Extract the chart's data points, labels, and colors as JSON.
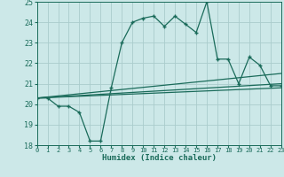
{
  "xlabel": "Humidex (Indice chaleur)",
  "background_color": "#cce8e8",
  "grid_color": "#aacccc",
  "line_color": "#1a6b5a",
  "xlim": [
    0,
    23
  ],
  "ylim": [
    18,
    25
  ],
  "yticks": [
    18,
    19,
    20,
    21,
    22,
    23,
    24,
    25
  ],
  "xticks": [
    0,
    1,
    2,
    3,
    4,
    5,
    6,
    7,
    8,
    9,
    10,
    11,
    12,
    13,
    14,
    15,
    16,
    17,
    18,
    19,
    20,
    21,
    22,
    23
  ],
  "line1_x": [
    0,
    1,
    2,
    3,
    4,
    5,
    6,
    7,
    8,
    9,
    10,
    11,
    12,
    13,
    14,
    15,
    16,
    17,
    18,
    19,
    20,
    21,
    22,
    23
  ],
  "line1_y": [
    20.3,
    20.3,
    19.9,
    19.9,
    19.6,
    18.2,
    18.2,
    20.8,
    23.0,
    24.0,
    24.2,
    24.3,
    23.8,
    24.3,
    23.9,
    23.5,
    25.0,
    22.2,
    22.2,
    21.0,
    22.3,
    21.9,
    20.9,
    20.9
  ],
  "line2_x": [
    0,
    23
  ],
  "line2_y": [
    20.3,
    21.5
  ],
  "line3_x": [
    0,
    23
  ],
  "line3_y": [
    20.3,
    21.0
  ],
  "line4_x": [
    0,
    23
  ],
  "line4_y": [
    20.3,
    20.8
  ]
}
